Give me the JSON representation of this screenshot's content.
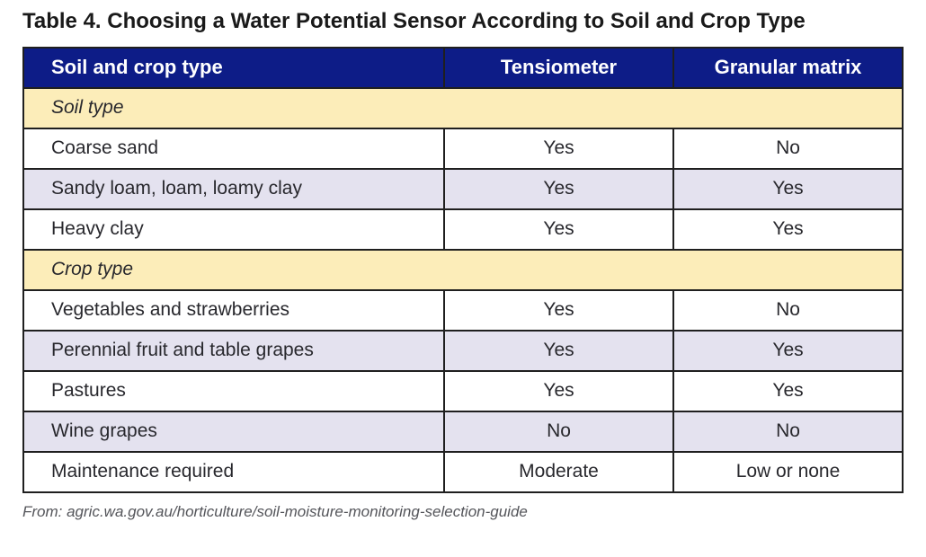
{
  "title": "Table 4. Choosing a Water Potential Sensor According to Soil and Crop Type",
  "source_note": "From: agric.wa.gov.au/horticulture/soil-moisture-monitoring-selection-guide",
  "colors": {
    "header_bg": "#0d1c87",
    "header_text": "#ffffff",
    "section_row_bg": "#fcedb9",
    "alt_row_bg": "#e4e2ef",
    "row_bg": "#ffffff",
    "border": "#1f1f1f",
    "source_text": "#54555a"
  },
  "chart_data": {
    "type": "table",
    "title": "Table 4. Choosing a Water Potential Sensor According to Soil and Crop Type",
    "columns": [
      "Soil and crop type",
      "Tensiometer",
      "Granular matrix"
    ],
    "sections": [
      {
        "label": "Soil type",
        "rows": [
          [
            "Coarse sand",
            "Yes",
            "No"
          ],
          [
            "Sandy loam, loam, loamy clay",
            "Yes",
            "Yes"
          ],
          [
            "Heavy clay",
            "Yes",
            "Yes"
          ]
        ]
      },
      {
        "label": "Crop type",
        "rows": [
          [
            "Vegetables and strawberries",
            "Yes",
            "No"
          ],
          [
            "Perennial fruit and table grapes",
            "Yes",
            "Yes"
          ],
          [
            "Pastures",
            "Yes",
            "Yes"
          ],
          [
            "Wine grapes",
            "No",
            "No"
          ],
          [
            "Maintenance required",
            "Moderate",
            "Low or none"
          ]
        ]
      }
    ]
  },
  "table": {
    "columns": [
      "Soil and crop type",
      "Tensiometer",
      "Granular matrix"
    ],
    "rows": [
      {
        "type": "section",
        "label": "Soil type"
      },
      {
        "type": "data",
        "label": "Coarse sand",
        "tensiometer": "Yes",
        "granular_matrix": "No"
      },
      {
        "type": "data",
        "label": "Sandy loam, loam, loamy clay",
        "tensiometer": "Yes",
        "granular_matrix": "Yes"
      },
      {
        "type": "data",
        "label": "Heavy clay",
        "tensiometer": "Yes",
        "granular_matrix": "Yes"
      },
      {
        "type": "section",
        "label": "Crop type"
      },
      {
        "type": "data",
        "label": "Vegetables and strawberries",
        "tensiometer": "Yes",
        "granular_matrix": "No"
      },
      {
        "type": "data",
        "label": "Perennial fruit and table grapes",
        "tensiometer": "Yes",
        "granular_matrix": "Yes"
      },
      {
        "type": "data",
        "label": "Pastures",
        "tensiometer": "Yes",
        "granular_matrix": "Yes"
      },
      {
        "type": "data",
        "label": "Wine grapes",
        "tensiometer": "No",
        "granular_matrix": "No"
      },
      {
        "type": "data",
        "label": "Maintenance required",
        "tensiometer": "Moderate",
        "granular_matrix": "Low or none"
      }
    ]
  }
}
